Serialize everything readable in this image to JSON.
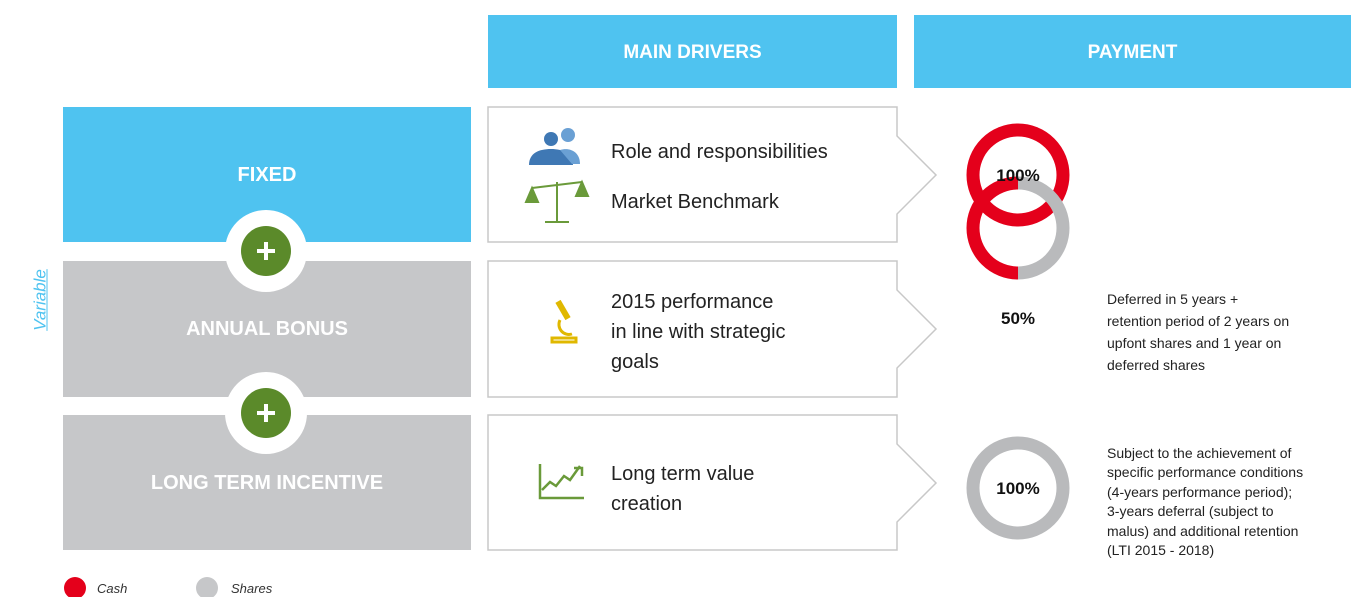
{
  "headers": [
    "MAIN DRIVERS",
    "PAYMENT"
  ],
  "side_label": "Variable",
  "rows": [
    {
      "component": "FIXED",
      "drivers": [
        {
          "lines": [
            "Role and responsibilities"
          ]
        },
        {
          "lines": [
            "Market Benchmark"
          ]
        }
      ],
      "payment": "100%",
      "note": []
    },
    {
      "component": "ANNUAL BONUS",
      "drivers": [
        {
          "lines": [
            "2015 performance",
            "in line with strategic",
            "goals"
          ]
        }
      ],
      "payment": "50%",
      "note": [
        "Deferred in 5 years +",
        "retention period of 2 years on",
        "upfont shares and 1 year on",
        "deferred shares"
      ]
    },
    {
      "component": "LONG TERM INCENTIVE",
      "drivers": [
        {
          "lines": [
            "Long term value",
            "creation"
          ]
        }
      ],
      "payment": "100%",
      "note": [
        "Subject to the achievement of",
        "specific performance conditions",
        "(4-years performance period);",
        "3-years deferral (subject to",
        "malus) and additional retention",
        "(LTI 2015 - 2018)"
      ]
    }
  ],
  "legend": [
    "Cash",
    "Shares"
  ]
}
